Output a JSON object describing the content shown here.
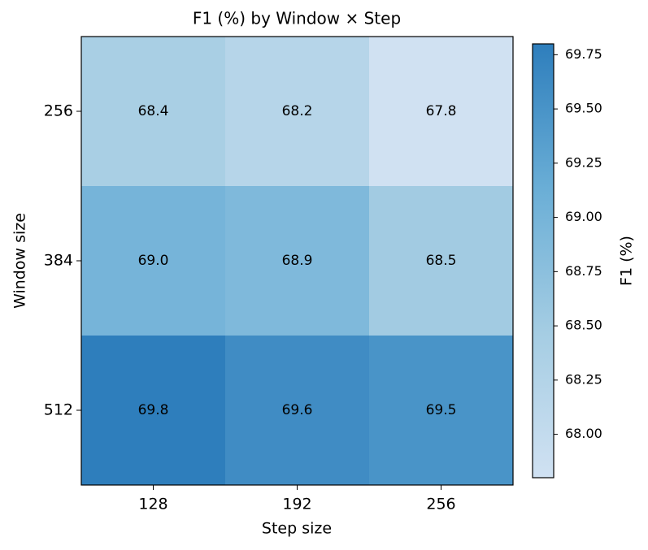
{
  "chart_data": {
    "type": "heatmap",
    "title": "F1 (%) by Window × Step",
    "x_label": "Step size",
    "y_label": "Window size",
    "colorbar_label": "F1 (%)",
    "x_categories": [
      "128",
      "192",
      "256"
    ],
    "y_categories": [
      "256",
      "384",
      "512"
    ],
    "values": [
      [
        68.4,
        68.2,
        67.8
      ],
      [
        69.0,
        68.9,
        68.5
      ],
      [
        69.8,
        69.6,
        69.5
      ]
    ],
    "value_labels": [
      [
        "68.4",
        "68.2",
        "67.8"
      ],
      [
        "69.0",
        "68.9",
        "68.5"
      ],
      [
        "69.8",
        "69.6",
        "69.5"
      ]
    ],
    "clim": [
      67.8,
      69.8
    ],
    "colorbar_ticks": [
      {
        "value": 68.0,
        "label": "68.00"
      },
      68.25,
      {
        "value": 68.5,
        "label": "68.50"
      },
      68.75,
      {
        "value": 69.0,
        "label": "69.00"
      },
      69.25,
      {
        "value": 69.5,
        "label": "69.50"
      },
      69.75
    ],
    "colormap": [
      "#d0e1f2",
      "#a5cde3",
      "#6aaed6",
      "#2e7ebc"
    ]
  }
}
